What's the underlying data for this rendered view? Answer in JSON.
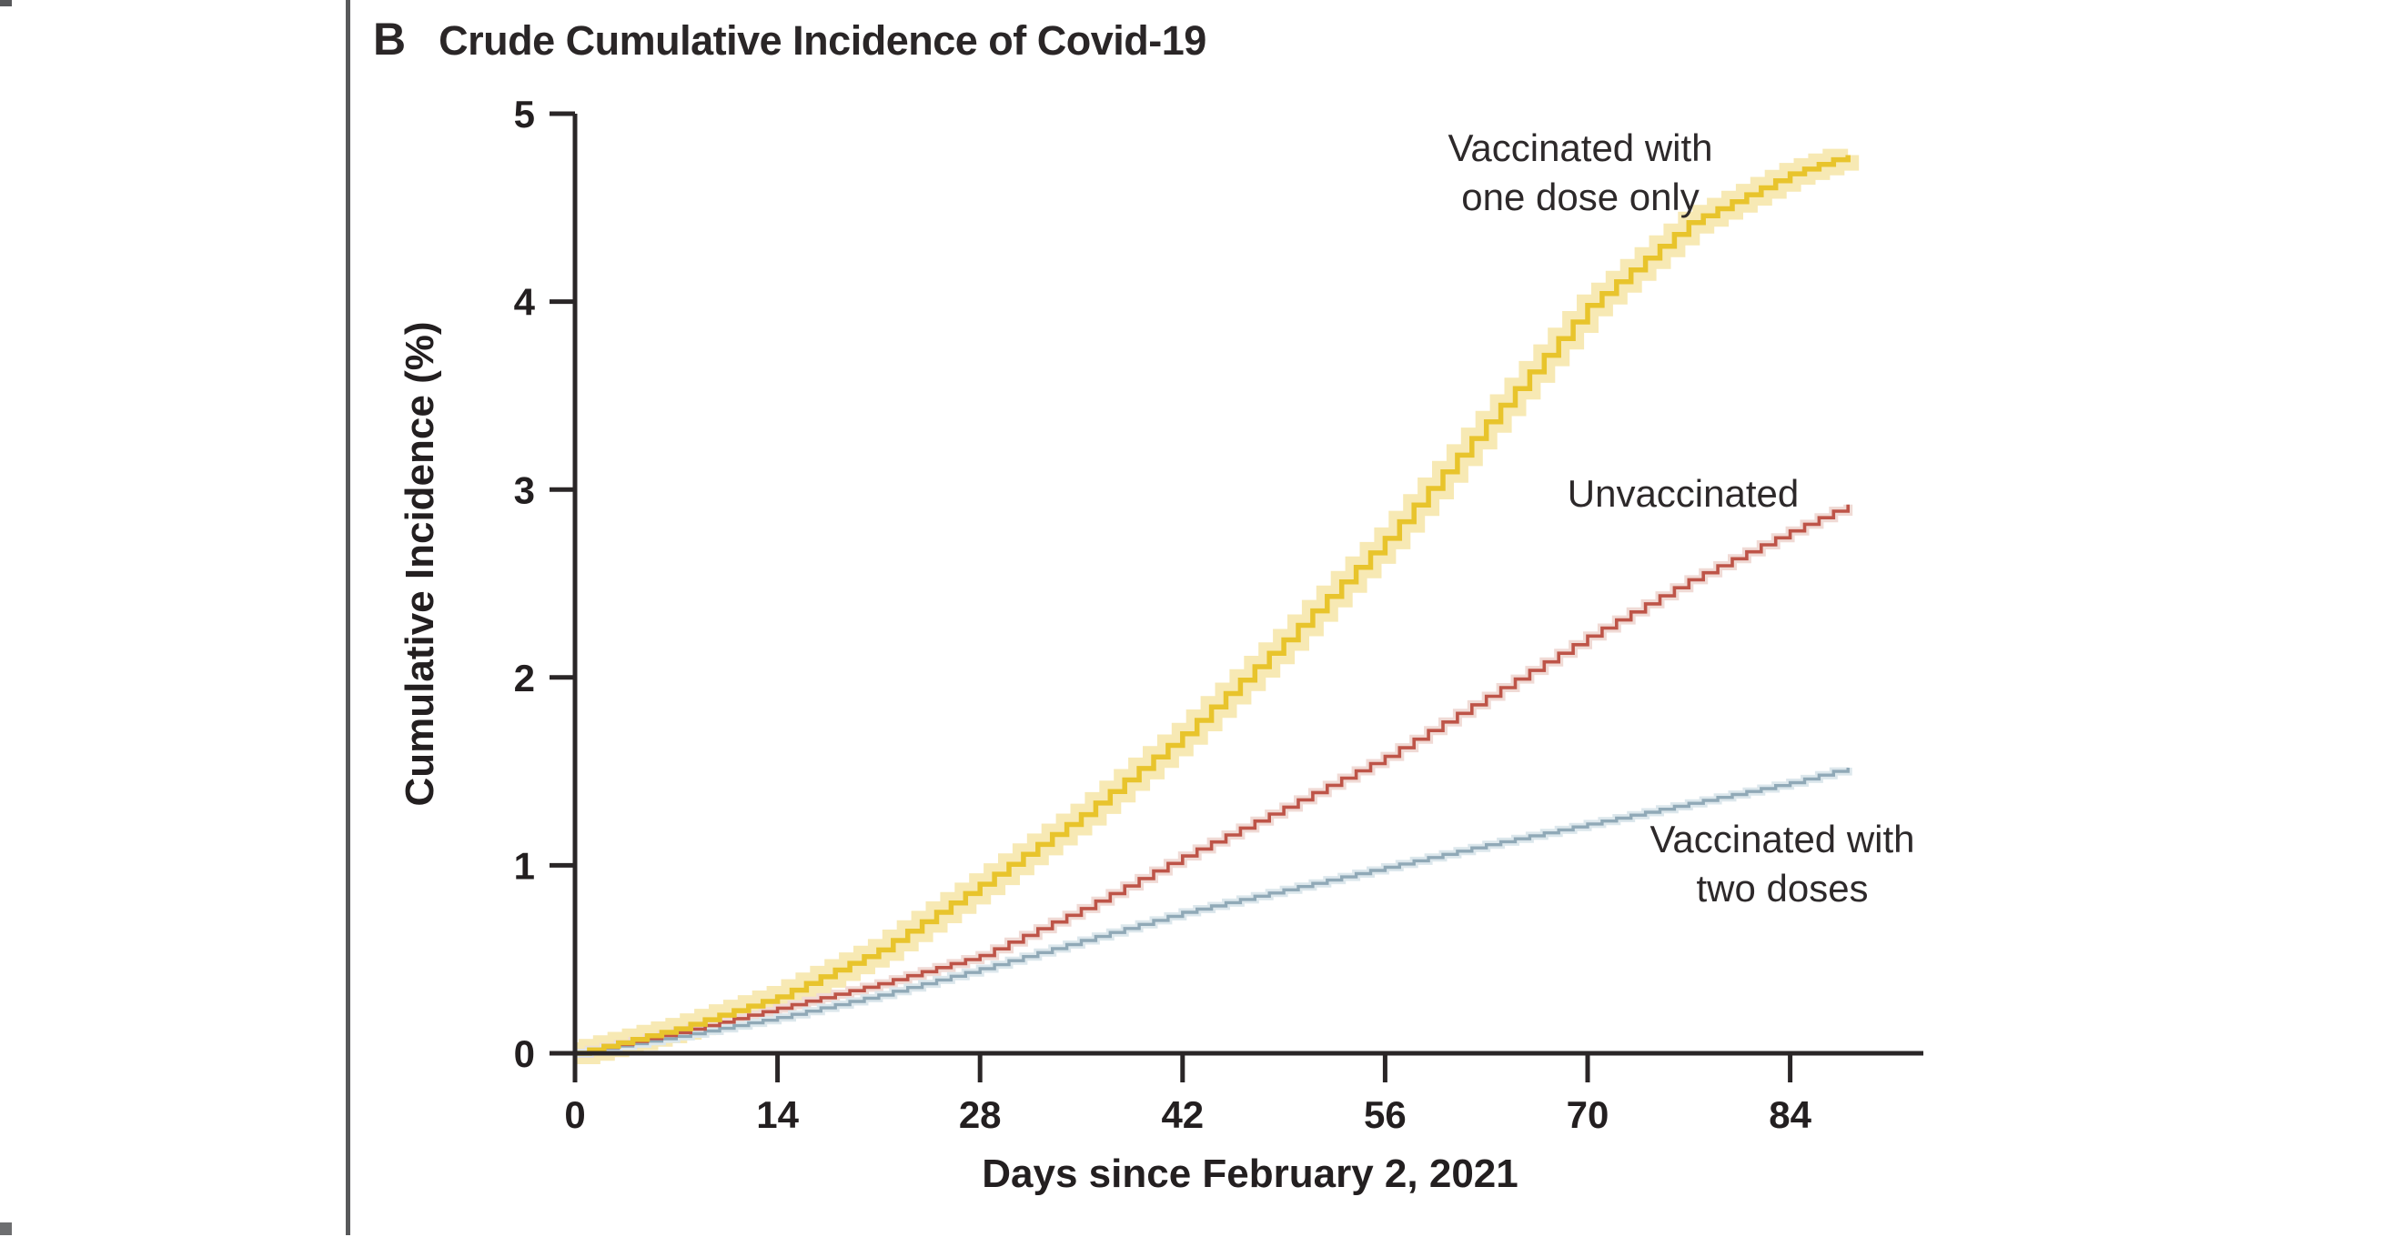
{
  "page": {
    "panel_label": "B",
    "title": "Crude Cumulative Incidence of Covid-19"
  },
  "chart_data": {
    "type": "line",
    "subtype": "step-cumulative-incidence",
    "title": "Crude Cumulative Incidence of Covid-19",
    "panel": "B",
    "xlabel": "Days since February 2, 2021",
    "ylabel": "Cumulative Incidence (%)",
    "xlim": [
      0,
      93
    ],
    "ylim": [
      0,
      5
    ],
    "x_ticks": [
      0,
      14,
      28,
      42,
      56,
      70,
      84
    ],
    "y_ticks": [
      0,
      1,
      2,
      3,
      4,
      5
    ],
    "grid": false,
    "legend_position": "inline-annotations",
    "axis_color": "#2a2627",
    "series": [
      {
        "name": "Vaccinated with one dose only",
        "label_lines": [
          "Vaccinated with",
          "one dose only"
        ],
        "color": "#E8C42C",
        "band_color": "#F7E9B4",
        "line_width": 5.5,
        "band_width": 24,
        "x": [
          0,
          7,
          14,
          21,
          28,
          35,
          42,
          49,
          56,
          63,
          70,
          77,
          84,
          88
        ],
        "y": [
          0,
          0.13,
          0.3,
          0.55,
          0.9,
          1.27,
          1.7,
          2.2,
          2.74,
          3.36,
          3.98,
          4.42,
          4.68,
          4.78
        ]
      },
      {
        "name": "Unvaccinated",
        "label_lines": [
          "Unvaccinated"
        ],
        "color": "#BE5448",
        "band_color": "#F0DAD5",
        "line_width": 3.6,
        "band_width": 10,
        "x": [
          0,
          7,
          14,
          21,
          28,
          35,
          42,
          49,
          56,
          63,
          70,
          77,
          84,
          88
        ],
        "y": [
          0,
          0.11,
          0.24,
          0.37,
          0.52,
          0.77,
          1.05,
          1.31,
          1.58,
          1.9,
          2.22,
          2.52,
          2.78,
          2.92
        ]
      },
      {
        "name": "Vaccinated with two doses",
        "label_lines": [
          "Vaccinated with",
          "two doses"
        ],
        "color": "#90A9B7",
        "band_color": "#DCE7EC",
        "line_width": 3.4,
        "band_width": 9,
        "x": [
          0,
          7,
          14,
          21,
          28,
          35,
          42,
          49,
          56,
          63,
          70,
          77,
          84,
          88
        ],
        "y": [
          0,
          0.09,
          0.19,
          0.31,
          0.45,
          0.6,
          0.75,
          0.87,
          0.99,
          1.11,
          1.22,
          1.33,
          1.44,
          1.52
        ]
      }
    ]
  }
}
